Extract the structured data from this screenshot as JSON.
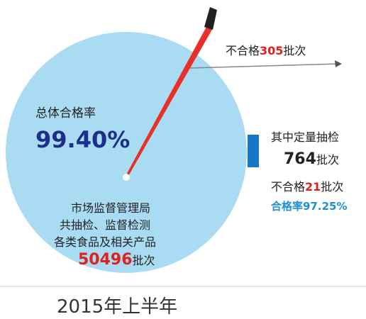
{
  "top_note": {
    "prefix": "不合格",
    "count": "305",
    "suffix": "批次"
  },
  "overall": {
    "label": "总体合格率",
    "rate": "99.40%"
  },
  "center": {
    "line1": "市场监督管理局",
    "line2": "共抽检、监督检测",
    "line3": "各类食品及相关产品",
    "count": "50496",
    "suffix": "批次"
  },
  "side": {
    "line1": "其中定量抽检",
    "count": "764",
    "count_suffix": "批次",
    "fail_prefix": "不合格",
    "fail_count": "21",
    "fail_suffix": "批次",
    "pass_rate": "合格率97.25%"
  },
  "period": "2015年上半年"
}
